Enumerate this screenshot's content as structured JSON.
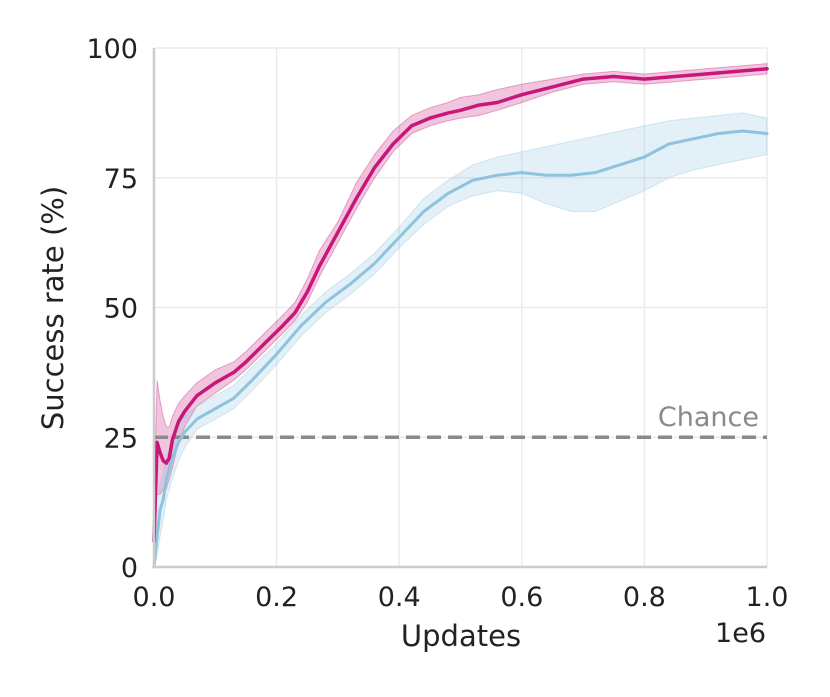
{
  "chart_data": {
    "type": "line",
    "xlabel": "Updates",
    "ylabel": "Success rate (%)",
    "x_offset_label": "1e6",
    "xlim": [
      0,
      1000000
    ],
    "ylim": [
      0,
      100
    ],
    "x_ticks": [
      0,
      200000,
      400000,
      600000,
      800000,
      1000000
    ],
    "x_tick_labels": [
      "0.0",
      "0.2",
      "0.4",
      "0.6",
      "0.8",
      "1.0"
    ],
    "y_ticks": [
      0,
      25,
      50,
      75,
      100
    ],
    "y_tick_labels": [
      "0",
      "25",
      "50",
      "75",
      "100"
    ],
    "grid": true,
    "reference_line": {
      "y": 25,
      "label": "Chance",
      "color": "#8a8a8a",
      "style": "dashed"
    },
    "series": [
      {
        "color": "#c8177a",
        "x": [
          0,
          5000,
          10000,
          15000,
          20000,
          25000,
          30000,
          40000,
          50000,
          70000,
          100000,
          130000,
          150000,
          180000,
          210000,
          230000,
          250000,
          270000,
          300000,
          330000,
          360000,
          390000,
          420000,
          450000,
          480000,
          500000,
          530000,
          560000,
          600000,
          650000,
          700000,
          750000,
          800000,
          850000,
          900000,
          950000,
          1000000
        ],
        "y": [
          5,
          24,
          22,
          20.5,
          20,
          21,
          24.5,
          28,
          30,
          33,
          35.5,
          37.5,
          39.5,
          43,
          46.5,
          49,
          53,
          58,
          64.5,
          71,
          77,
          81.5,
          85,
          86.5,
          87.5,
          88,
          89,
          89.5,
          91,
          92.5,
          94,
          94.5,
          94,
          94.5,
          95,
          95.5,
          96
        ],
        "y_lower": [
          0,
          14,
          14,
          15,
          15,
          17,
          19,
          24,
          27,
          31,
          33.5,
          36,
          38,
          41.5,
          45,
          47.5,
          51,
          56,
          62.5,
          69,
          75,
          80,
          83.5,
          85,
          86,
          86.5,
          87,
          88,
          89.5,
          91.5,
          93,
          93.5,
          93,
          93.5,
          94,
          94.5,
          95
        ],
        "y_upper": [
          12,
          36,
          32,
          29,
          27,
          27,
          29,
          31.5,
          33,
          35.5,
          38,
          39.5,
          41.5,
          45,
          48.5,
          51,
          55.5,
          61,
          66.5,
          74,
          79.5,
          84,
          87,
          88.5,
          89.5,
          90.5,
          91,
          92,
          93,
          94,
          95,
          95.5,
          95,
          95.5,
          96,
          96.5,
          97
        ]
      },
      {
        "color": "#8ec3de",
        "x": [
          0,
          5000,
          10000,
          15000,
          20000,
          30000,
          40000,
          50000,
          70000,
          100000,
          130000,
          160000,
          200000,
          240000,
          280000,
          320000,
          360000,
          400000,
          440000,
          480000,
          520000,
          560000,
          600000,
          640000,
          680000,
          720000,
          760000,
          800000,
          840000,
          880000,
          920000,
          960000,
          1000000
        ],
        "y": [
          0,
          6,
          11,
          13,
          17,
          21,
          24,
          26,
          28.5,
          30.5,
          32.5,
          36,
          41,
          46.5,
          51,
          54.5,
          58.5,
          63.5,
          68.5,
          72,
          74.5,
          75.5,
          76,
          75.5,
          75.5,
          76,
          77.5,
          79,
          81.5,
          82.5,
          83.5,
          84,
          83.5
        ],
        "y_lower": [
          0,
          2,
          6,
          9,
          13,
          17,
          20.5,
          23,
          26.5,
          28.5,
          30.5,
          34,
          39,
          44.5,
          49,
          52.5,
          56.5,
          61.5,
          66,
          69.5,
          71.5,
          72.5,
          72,
          70,
          68.5,
          68.5,
          70.5,
          72.5,
          75,
          76.5,
          77.5,
          78.5,
          79.5
        ],
        "y_upper": [
          1,
          10,
          16,
          18,
          21,
          25,
          27.5,
          29,
          31,
          33,
          35,
          38.5,
          43,
          48.5,
          53,
          56.5,
          60.5,
          65.5,
          71,
          74.5,
          77.5,
          79,
          80,
          81,
          82,
          83,
          84,
          85,
          86,
          86.5,
          87,
          87.5,
          86.5
        ]
      }
    ]
  }
}
